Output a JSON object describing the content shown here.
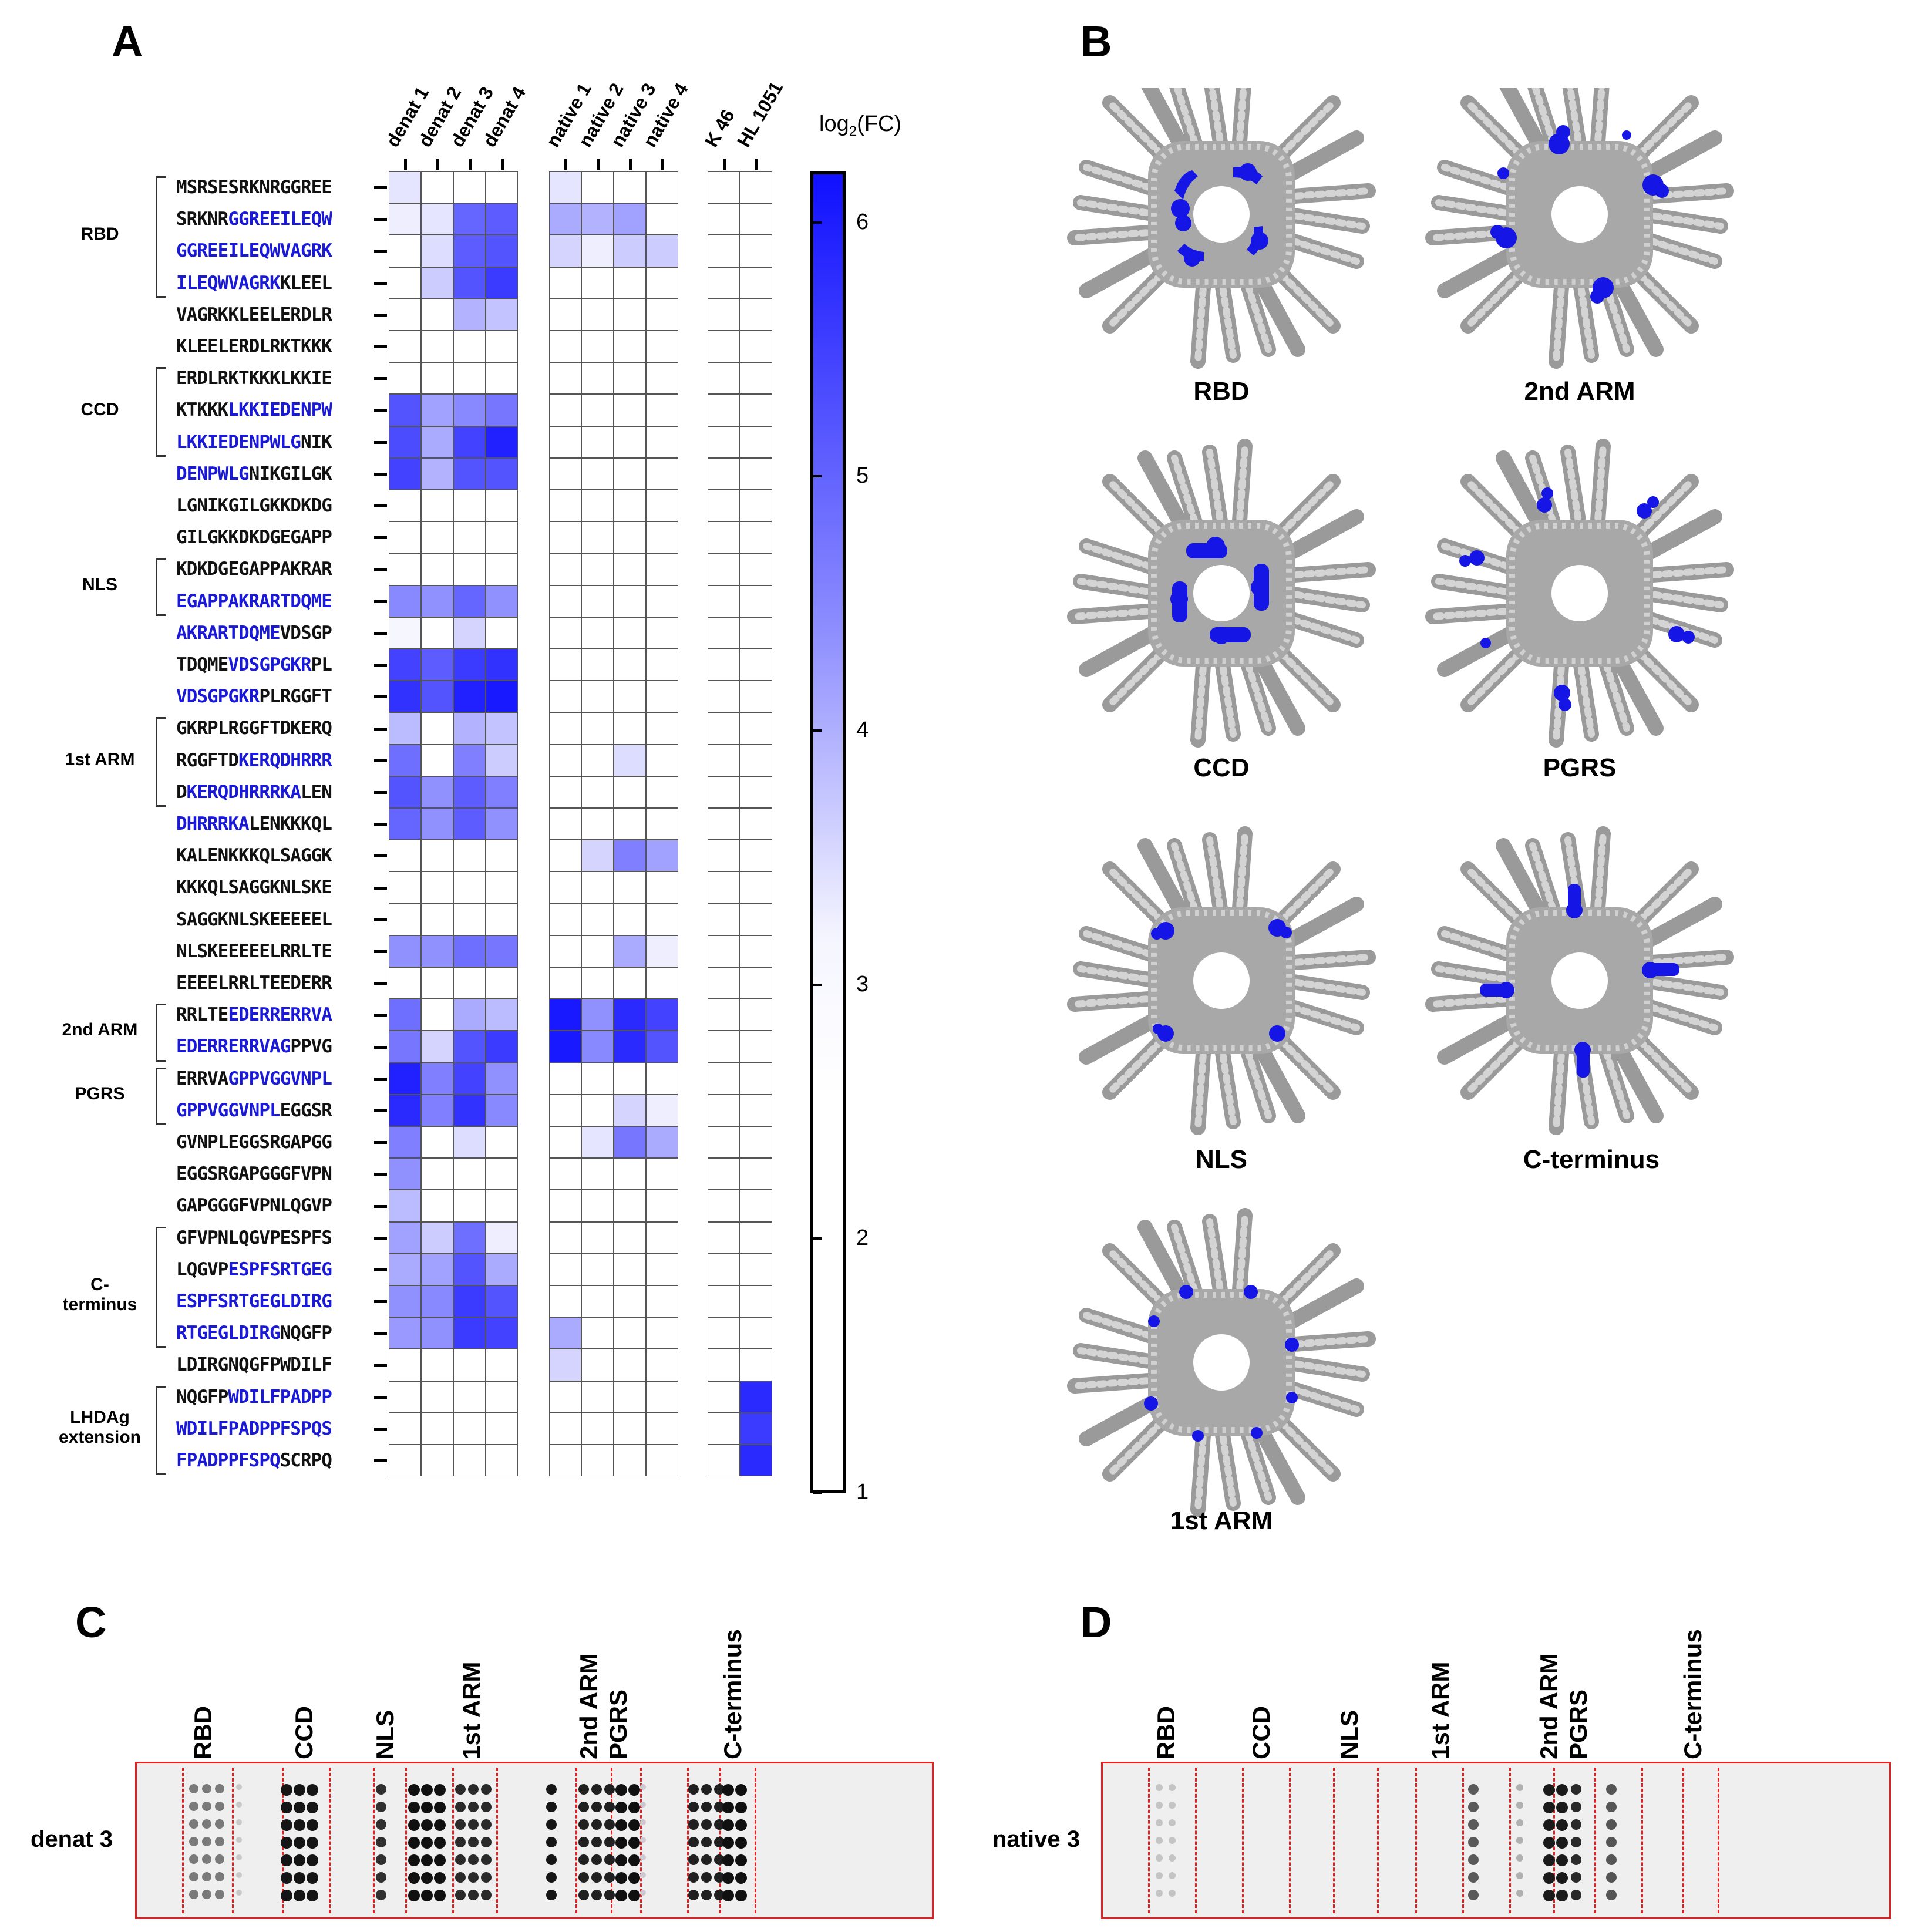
{
  "panels": {
    "a": "A",
    "b": "B",
    "c": "C",
    "d": "D"
  },
  "chart_data": [
    {
      "type": "heatmap",
      "title": "",
      "colorbar_label": "log2(FC)",
      "colorbar_range": [
        1,
        6.2
      ],
      "colorbar_ticks": [
        "6",
        "5",
        "4",
        "3",
        "2",
        "1"
      ],
      "columns": [
        "denat 1",
        "denat 2",
        "denat 3",
        "denat 4",
        "native 1",
        "native 2",
        "native 3",
        "native 4",
        "K 46",
        "HL 1051"
      ],
      "groups": [
        {
          "label": "RBD",
          "rows": [
            0,
            4
          ]
        },
        {
          "label": "CCD",
          "rows": [
            6,
            9
          ]
        },
        {
          "label": "NLS",
          "rows": [
            12,
            14
          ]
        },
        {
          "label": "1st ARM",
          "rows": [
            17,
            20
          ]
        },
        {
          "label": "2nd ARM",
          "rows": [
            26,
            28
          ]
        },
        {
          "label": "PGRS",
          "rows": [
            28,
            30
          ]
        },
        {
          "label": "C-terminus",
          "rows": [
            33,
            37
          ]
        },
        {
          "label": "LHDAg extension",
          "rows": [
            38,
            41
          ]
        }
      ],
      "rows": [
        {
          "pre": "MSRSESRKNRGGREE",
          "hl": "",
          "post": ""
        },
        {
          "pre": "SRKNR",
          "hl": "GGREEILEQW",
          "post": ""
        },
        {
          "pre": "",
          "hl": "GGREEILEQWVAGRK",
          "post": ""
        },
        {
          "pre": "",
          "hl": "ILEQWVAGRK",
          "post": "KLEEL"
        },
        {
          "pre": "VAGRKKLEELERDLR",
          "hl": "",
          "post": ""
        },
        {
          "pre": "KLEELERDLRKTKKK",
          "hl": "",
          "post": ""
        },
        {
          "pre": "ERDLRKTKKKLKKIE",
          "hl": "",
          "post": ""
        },
        {
          "pre": "KTKKK",
          "hl": "LKKIEDENPW",
          "post": ""
        },
        {
          "pre": "",
          "hl": "LKKIEDENPWLG",
          "post": "NIK"
        },
        {
          "pre": "",
          "hl": "DENPWLG",
          "post": "NIKGILGK"
        },
        {
          "pre": "LGNIKGILGKKDKDG",
          "hl": "",
          "post": ""
        },
        {
          "pre": "GILGKKDKDGEGAPP",
          "hl": "",
          "post": ""
        },
        {
          "pre": "KDKDGEGAPPAKRAR",
          "hl": "",
          "post": ""
        },
        {
          "pre": "",
          "hl": "EGAPPAKRARTDQME",
          "post": ""
        },
        {
          "pre": "",
          "hl": "AKRARTDQME",
          "post": "VDSGP"
        },
        {
          "pre": "TDQME",
          "hl": "VDSGPGKR",
          "post": "PL"
        },
        {
          "pre": "",
          "hl": "VDSGPGKR",
          "post": "PLRGGFT"
        },
        {
          "pre": "GKRPLRGGFTDKERQ",
          "hl": "",
          "post": ""
        },
        {
          "pre": "RGGFTD",
          "hl": "KERQDHRRR",
          "post": ""
        },
        {
          "pre": "D",
          "hl": "KERQDHRRRKA",
          "post": "LEN"
        },
        {
          "pre": "",
          "hl": "DHRRRKA",
          "post": "LENKKKQL"
        },
        {
          "pre": "KALENKKKQLSAGGK",
          "hl": "",
          "post": ""
        },
        {
          "pre": "KKKQLSAGGKNLSKE",
          "hl": "",
          "post": ""
        },
        {
          "pre": "SAGGKNLSKEEEEEL",
          "hl": "",
          "post": ""
        },
        {
          "pre": "NLSKEEEEELRRLTE",
          "hl": "",
          "post": ""
        },
        {
          "pre": "EEEELRRLTEEDERR",
          "hl": "",
          "post": ""
        },
        {
          "pre": "RRLTE",
          "hl": "EDERRERRVA",
          "post": ""
        },
        {
          "pre": "",
          "hl": "EDERRERRVAG",
          "post": "PPVG"
        },
        {
          "pre": "ERRVA",
          "hl": "GPPVGGVNPL",
          "post": ""
        },
        {
          "pre": "",
          "hl": "GPPVGGVNPL",
          "post": "EGGSR"
        },
        {
          "pre": "GVNPLEGGSRGAPGG",
          "hl": "",
          "post": ""
        },
        {
          "pre": "EGGSRGAPGGGFVPN",
          "hl": "",
          "post": ""
        },
        {
          "pre": "GAPGGGFVPNLQGVP",
          "hl": "",
          "post": ""
        },
        {
          "pre": "GFVPNLQGVPESPFS",
          "hl": "",
          "post": ""
        },
        {
          "pre": "LQGVP",
          "hl": "ESPFSRTGEG",
          "post": ""
        },
        {
          "pre": "",
          "hl": "ESPFSRTGEGLDIRG",
          "post": ""
        },
        {
          "pre": "",
          "hl": "RTGEGLDIRG",
          "post": "NQGFP"
        },
        {
          "pre": "LDIRGNQGFPWDILF",
          "hl": "",
          "post": ""
        },
        {
          "pre": "NQGFP",
          "hl": "WDILFPADPP",
          "post": ""
        },
        {
          "pre": "",
          "hl": "WDILFPADPPFSPQS",
          "post": ""
        },
        {
          "pre": "",
          "hl": "FPADPPFSPQ",
          "post": "SCRPQ"
        }
      ],
      "values": [
        [
          3.7,
          1,
          1,
          1,
          3.7,
          1,
          1,
          1,
          1,
          1
        ],
        [
          3.6,
          3.7,
          5.2,
          5.3,
          4.4,
          4.3,
          4.5,
          1,
          1,
          1
        ],
        [
          1,
          3.8,
          5.3,
          5.4,
          3.9,
          3.6,
          4.0,
          4.0,
          1,
          1
        ],
        [
          1,
          4.0,
          5.4,
          5.7,
          1,
          1,
          1,
          1,
          1,
          1
        ],
        [
          1,
          1,
          4.3,
          4.1,
          1,
          1,
          1,
          1,
          1,
          1
        ],
        [
          1,
          1,
          1,
          1,
          1,
          1,
          1,
          1,
          1,
          1
        ],
        [
          1,
          1,
          1,
          1,
          1,
          1,
          1,
          1,
          1,
          1
        ],
        [
          5.4,
          4.5,
          4.8,
          5.0,
          1,
          1,
          1,
          1,
          1,
          1
        ],
        [
          5.5,
          4.4,
          5.6,
          6.0,
          1,
          1,
          1,
          1,
          1,
          1
        ],
        [
          5.6,
          4.3,
          5.4,
          5.4,
          1,
          1,
          1,
          1,
          1,
          1
        ],
        [
          1,
          1,
          1,
          1,
          1,
          1,
          1,
          1,
          1,
          1
        ],
        [
          1,
          1,
          1,
          1,
          1,
          1,
          1,
          1,
          1,
          1
        ],
        [
          1,
          1,
          1,
          1,
          1,
          1,
          1,
          1,
          1,
          1
        ],
        [
          4.8,
          4.7,
          5.2,
          4.7,
          1,
          1,
          1,
          1,
          1,
          1
        ],
        [
          3.5,
          1,
          3.9,
          1,
          1,
          1,
          1,
          1,
          1,
          1
        ],
        [
          5.6,
          5.3,
          5.7,
          5.8,
          1,
          1,
          1,
          1,
          1,
          1
        ],
        [
          5.8,
          5.4,
          6.0,
          6.1,
          1,
          1,
          1,
          1,
          1,
          1
        ],
        [
          4.2,
          1,
          4.3,
          4.1,
          1,
          1,
          3.4,
          1,
          1,
          1
        ],
        [
          5.1,
          1,
          4.9,
          4.0,
          1,
          1,
          3.8,
          1,
          1,
          1
        ],
        [
          5.4,
          4.7,
          5.3,
          4.9,
          1,
          1,
          1,
          1,
          1,
          1
        ],
        [
          5.2,
          4.7,
          5.3,
          4.7,
          1,
          1,
          1,
          1,
          1,
          1
        ],
        [
          1,
          1,
          1,
          1,
          1,
          3.9,
          4.9,
          4.5,
          1,
          1
        ],
        [
          1,
          1,
          1,
          1,
          1,
          1,
          1,
          1,
          1,
          1
        ],
        [
          1,
          1,
          1,
          1,
          1,
          1,
          1,
          1,
          1,
          1
        ],
        [
          4.7,
          4.7,
          5.1,
          5.0,
          3.4,
          1,
          4.4,
          3.6,
          1,
          1
        ],
        [
          1,
          1,
          1,
          1,
          1,
          1,
          1,
          1,
          1,
          1
        ],
        [
          5.1,
          1,
          4.4,
          4.2,
          6.1,
          4.7,
          5.9,
          5.6,
          1,
          1
        ],
        [
          5.0,
          3.9,
          5.4,
          5.7,
          6.1,
          4.8,
          5.9,
          5.4,
          1,
          1
        ],
        [
          6.0,
          4.9,
          5.6,
          4.7,
          1,
          1,
          1,
          1,
          1,
          1
        ],
        [
          5.9,
          4.9,
          5.8,
          4.8,
          1,
          1,
          3.9,
          3.6,
          1,
          1
        ],
        [
          4.9,
          1,
          3.8,
          1,
          1,
          3.7,
          5.0,
          4.4,
          1,
          1
        ],
        [
          4.7,
          1,
          1,
          1,
          1,
          1,
          1,
          1,
          1,
          1
        ],
        [
          4.2,
          1,
          1,
          1,
          1,
          1,
          1,
          1,
          1,
          1
        ],
        [
          4.5,
          4.0,
          5.1,
          3.6,
          1,
          1,
          1,
          1,
          1,
          1
        ],
        [
          4.4,
          4.5,
          5.4,
          4.4,
          1,
          1,
          1,
          1,
          1,
          1
        ],
        [
          4.7,
          4.8,
          5.7,
          5.4,
          1,
          1,
          1,
          1,
          1,
          1
        ],
        [
          4.6,
          4.7,
          5.7,
          5.6,
          4.4,
          1,
          1,
          1,
          1,
          1
        ],
        [
          1,
          1,
          1,
          1,
          3.9,
          1,
          1,
          1,
          1,
          1
        ],
        [
          1,
          1,
          1,
          1,
          1,
          1,
          1,
          1,
          1,
          5.9
        ],
        [
          1,
          1,
          1,
          1,
          1,
          1,
          1,
          1,
          1,
          5.7
        ],
        [
          1,
          1,
          1,
          1,
          1,
          1,
          1,
          1,
          1,
          5.9
        ]
      ]
    },
    {
      "type": "table",
      "title": "denat 3",
      "columns": [
        "RBD",
        "CCD",
        "NLS",
        "1st ARM",
        "2nd ARM",
        "PGRS",
        "C-terminus"
      ]
    },
    {
      "type": "table",
      "title": "native 3",
      "columns": [
        "RBD",
        "CCD",
        "NLS",
        "1st ARM",
        "2nd ARM",
        "PGRS",
        "C-terminus"
      ]
    }
  ],
  "structures": {
    "captions": [
      "RBD",
      "2nd ARM",
      "CCD",
      "PGRS",
      "NLS",
      "C-terminus",
      "1st ARM"
    ]
  },
  "colors": {
    "blue": "#1414ff",
    "highlight_text": "#1a1ad6",
    "blot_border": "#e02020",
    "grid": "#555555"
  }
}
